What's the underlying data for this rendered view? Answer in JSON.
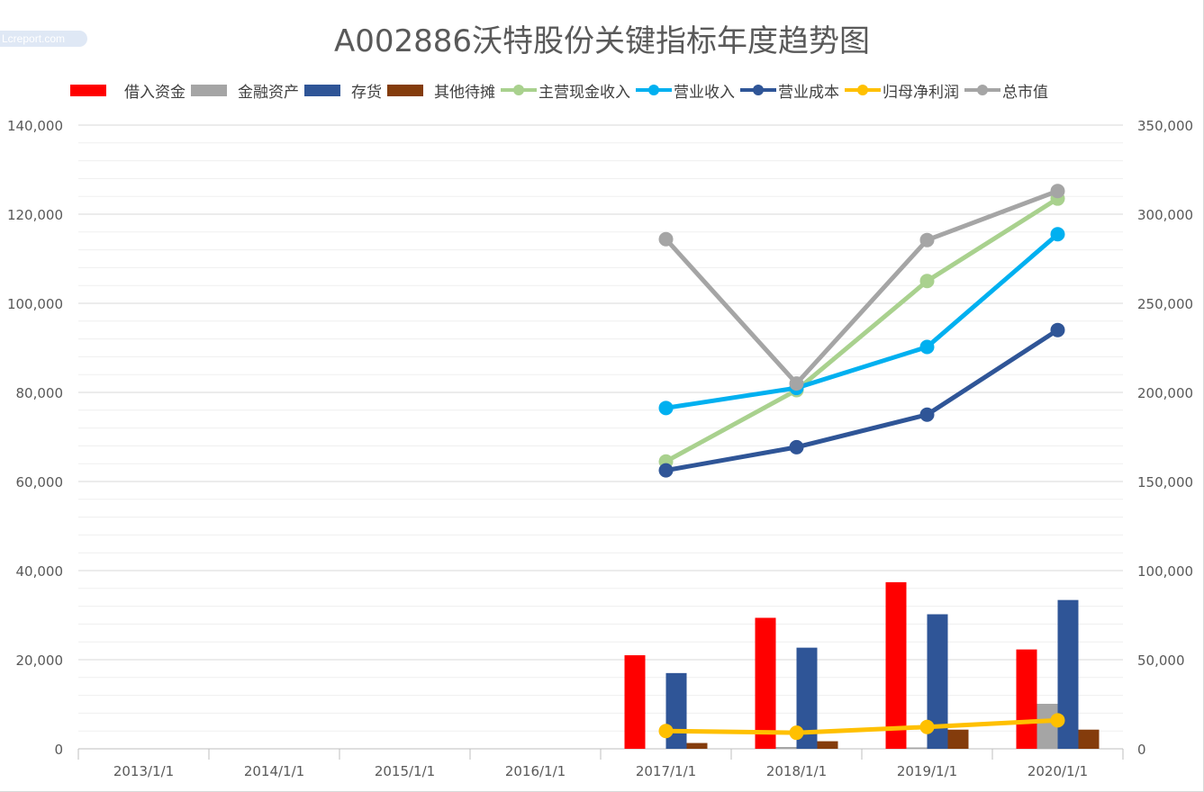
{
  "watermark": "Lcreport.com",
  "chart_data": {
    "type": "bar",
    "title": "A002886沃特股份关键指标年度趋势图",
    "categories": [
      "2013/1/1",
      "2014/1/1",
      "2015/1/1",
      "2016/1/1",
      "2017/1/1",
      "2018/1/1",
      "2019/1/1",
      "2020/1/1"
    ],
    "y_left": {
      "ylim": [
        0,
        140000
      ],
      "ticks": [
        "0",
        "20,000",
        "40,000",
        "60,000",
        "80,000",
        "100,000",
        "120,000",
        "140,000"
      ]
    },
    "y_right": {
      "ylim": [
        0,
        350000
      ],
      "ticks": [
        "0",
        "50,000",
        "100,000",
        "150,000",
        "200,000",
        "250,000",
        "300,000",
        "350,000"
      ]
    },
    "grid": true,
    "legend_position": "top",
    "bar_series": [
      {
        "name": "借入资金",
        "color": "#ff0000",
        "values": [
          null,
          null,
          null,
          null,
          21000,
          29400,
          37400,
          22300
        ]
      },
      {
        "name": "金融资产",
        "color": "#a5a5a5",
        "values": [
          null,
          null,
          null,
          null,
          0,
          400,
          300,
          10100
        ]
      },
      {
        "name": "存货",
        "color": "#2f5597",
        "values": [
          null,
          null,
          null,
          null,
          17000,
          22700,
          30200,
          33400
        ]
      },
      {
        "name": "其他待摊",
        "color": "#843c0c",
        "values": [
          null,
          null,
          null,
          null,
          1300,
          1700,
          4300,
          4300
        ]
      }
    ],
    "line_series": [
      {
        "name": "主营现金收入",
        "color": "#a9d18e",
        "axis": "left",
        "values": [
          null,
          null,
          null,
          null,
          64500,
          80500,
          105000,
          123500
        ]
      },
      {
        "name": "营业收入",
        "color": "#00b0f0",
        "axis": "left",
        "values": [
          null,
          null,
          null,
          null,
          76500,
          81000,
          90200,
          115500
        ]
      },
      {
        "name": "营业成本",
        "color": "#2f5597",
        "axis": "left",
        "values": [
          null,
          null,
          null,
          null,
          62500,
          67700,
          75000,
          94000
        ]
      },
      {
        "name": "归母净利润",
        "color": "#ffc000",
        "axis": "left",
        "values": [
          null,
          null,
          null,
          null,
          4000,
          3600,
          4900,
          6400
        ]
      },
      {
        "name": "总市值",
        "color": "#a5a5a5",
        "axis": "right",
        "values": [
          null,
          null,
          null,
          null,
          286000,
          205000,
          285500,
          313000
        ]
      }
    ]
  }
}
